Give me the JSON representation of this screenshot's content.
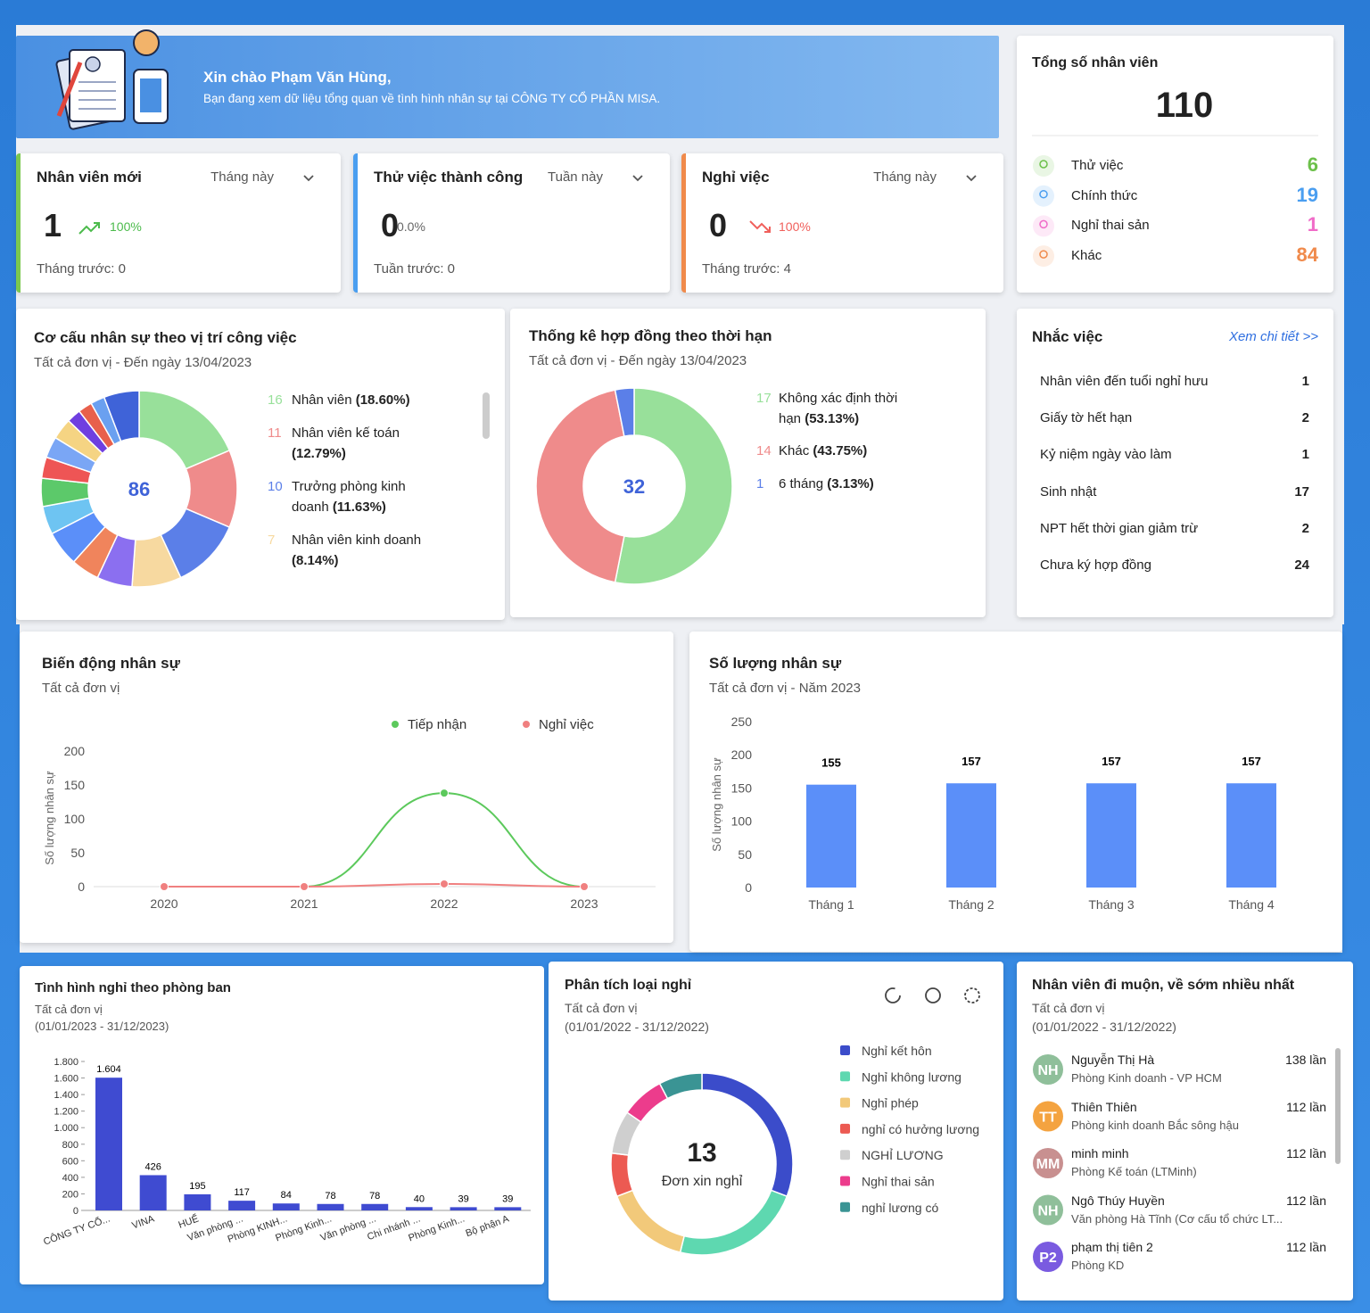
{
  "header": {
    "greeting": "Xin chào Phạm Văn Hùng,",
    "message": "Bạn đang xem dữ liệu tổng quan về tình hình nhân sự tại CÔNG TY CỔ PHẦN MISA."
  },
  "total_employees": {
    "title": "Tổng số nhân viên",
    "value": 110,
    "items": [
      {
        "label": "Thử việc",
        "value": 6,
        "color": "#6cc04a"
      },
      {
        "label": "Chính thức",
        "value": 19,
        "color": "#4a9ef0"
      },
      {
        "label": "Nghỉ thai sản",
        "value": 1,
        "color": "#f06bc8"
      },
      {
        "label": "Khác",
        "value": 84,
        "color": "#f08a4b"
      }
    ]
  },
  "kpis": [
    {
      "title": "Nhân viên mới",
      "period": "Tháng này",
      "value": 1,
      "change": "100%",
      "trend": "up",
      "previous": "Tháng trước: 0",
      "color": "#7cc84f"
    },
    {
      "title": "Thử việc thành công",
      "period": "Tuần này",
      "value": 0,
      "change": "0.0%",
      "trend": "none",
      "previous": "Tuần trước: 0",
      "color": "#4a9ef0"
    },
    {
      "title": "Nghỉ việc",
      "period": "Tháng này",
      "value": 0,
      "change": "100%",
      "trend": "down",
      "previous": "Tháng trước: 4",
      "color": "#f08a4b"
    }
  ],
  "positions": {
    "type": "donut",
    "title": "Cơ cấu nhân sự theo vị trí công việc",
    "subtitle": "Tất cả đơn vị - Đến ngày 13/04/2023",
    "total": 86,
    "slices": [
      {
        "value": 16,
        "label": "Nhân viên",
        "percent": "(18.60%)",
        "color": "#98e09a"
      },
      {
        "value": 11,
        "label": "Nhân viên kế toán",
        "percent": "(12.79%)",
        "color": "#ef8b8b"
      },
      {
        "value": 10,
        "label": "Trưởng phòng kinh doanh",
        "percent": "(11.63%)",
        "color": "#5b7fe8"
      },
      {
        "value": 7,
        "label": "Nhân viên kinh doanh",
        "percent": "(8.14%)",
        "color": "#f7d9a0"
      },
      {
        "value": 5,
        "color": "#8b6ff0"
      },
      {
        "value": 4,
        "color": "#f0845c"
      },
      {
        "value": 5,
        "color": "#5b8ff9"
      },
      {
        "value": 4,
        "color": "#6ec4f2"
      },
      {
        "value": 4,
        "color": "#5cc96a"
      },
      {
        "value": 3,
        "color": "#ee5555"
      },
      {
        "value": 3,
        "color": "#7aa6f5"
      },
      {
        "value": 3,
        "color": "#f5d483"
      },
      {
        "value": 2,
        "color": "#6f3fe0"
      },
      {
        "value": 2,
        "color": "#e8604c"
      },
      {
        "value": 2,
        "color": "#6aa0f0"
      },
      {
        "value": 5,
        "color": "#3f63d8"
      }
    ]
  },
  "contracts": {
    "type": "donut",
    "title": "Thống kê hợp đồng theo thời hạn",
    "subtitle": "Tất cả đơn vị - Đến ngày 13/04/2023",
    "total": 32,
    "slices": [
      {
        "value": 17,
        "label": "Không xác định thời hạn",
        "percent": "(53.13%)",
        "color": "#98e09a"
      },
      {
        "value": 14,
        "label": "Khác",
        "percent": "(43.75%)",
        "color": "#ef8b8b"
      },
      {
        "value": 1,
        "label": "6 tháng",
        "percent": "(3.13%)",
        "color": "#5b7fe8"
      }
    ]
  },
  "reminders": {
    "title": "Nhắc việc",
    "link": "Xem chi tiết >>",
    "rows": [
      {
        "label": "Nhân viên đến tuổi nghỉ hưu",
        "value": 1
      },
      {
        "label": "Giấy tờ hết hạn",
        "value": 2
      },
      {
        "label": "Kỷ niệm ngày vào làm",
        "value": 1
      },
      {
        "label": "Sinh nhật",
        "value": 17
      },
      {
        "label": "NPT hết thời gian giảm trừ",
        "value": 2
      },
      {
        "label": "Chưa ký hợp đồng",
        "value": 24
      }
    ]
  },
  "line_chart": {
    "type": "line",
    "title": "Biến động nhân sự",
    "subtitle": "Tất cả đơn vị",
    "y_label": "Số lượng nhân sự",
    "x": [
      2020,
      2021,
      2022,
      2023
    ],
    "series": [
      {
        "name": "Tiếp nhận",
        "color": "#5cc95c",
        "values": [
          0,
          0,
          138,
          0
        ]
      },
      {
        "name": "Nghỉ việc",
        "color": "#f08080",
        "values": [
          0,
          0,
          4,
          0
        ]
      }
    ],
    "ylim": [
      0,
      200
    ],
    "yticks": [
      0,
      50,
      100,
      150,
      200
    ],
    "grid": false,
    "legend": "top"
  },
  "bar_chart": {
    "type": "bar",
    "title": "Số lượng nhân sự",
    "subtitle": "Tất cả đơn vị - Năm 2023",
    "y_label": "Số lượng nhân sự",
    "categories": [
      "Tháng 1",
      "Tháng 2",
      "Tháng 3",
      "Tháng 4"
    ],
    "values": [
      155,
      157,
      157,
      157
    ],
    "color": "#5b8ff9",
    "ylim": [
      0,
      250
    ],
    "yticks": [
      0,
      50,
      100,
      150,
      200,
      250
    ],
    "grid": false
  },
  "dept_chart": {
    "type": "bar",
    "title": "Tình hình nghỉ theo phòng ban",
    "subtitle": "Tất cả đơn vị",
    "period": "(01/01/2023 - 31/12/2023)",
    "categories": [
      "CÔNG TY CỔ...",
      "VINA",
      "HUẾ",
      "Văn phòng ...",
      "Phòng KINH...",
      "Phòng Kinh...",
      "Văn phòng ...",
      "Chi nhánh ...",
      "Phòng Kinh...",
      "Bộ phận A"
    ],
    "values": [
      1604,
      426,
      195,
      117,
      84,
      78,
      78,
      40,
      39,
      39
    ],
    "value_labels": [
      "1.604",
      "426",
      "195",
      "117",
      "84",
      "78",
      "78",
      "40",
      "39",
      "39"
    ],
    "color": "#3f4bd1",
    "ylim": [
      0,
      1800
    ],
    "yticks": [
      0,
      200,
      400,
      600,
      800,
      {
        "value": 1000,
        "label": "1.000"
      },
      {
        "value": 1200,
        "label": "1.200"
      },
      {
        "value": 1400,
        "label": "1.400"
      },
      {
        "value": 1600,
        "label": "1.600"
      },
      {
        "value": 1800,
        "label": "1.800"
      }
    ]
  },
  "leave_types": {
    "type": "donut",
    "title": "Phân tích loại nghỉ",
    "subtitle": "Tất cả đơn vị",
    "period": "(01/01/2022 - 31/12/2022)",
    "total": 13,
    "center_label": "Đơn xin nghỉ",
    "slices": [
      {
        "label": "Nghỉ kết hôn",
        "value": 4,
        "color": "#3b4cca"
      },
      {
        "label": "Nghỉ không lương",
        "value": 3,
        "color": "#5ed8b0"
      },
      {
        "label": "Nghỉ phép",
        "value": 2,
        "color": "#f2c97a"
      },
      {
        "label": "nghỉ có hưởng lương",
        "value": 1,
        "color": "#ec5a52"
      },
      {
        "label": "NGHỈ LƯƠNG",
        "value": 1,
        "color": "#cfcfcf"
      },
      {
        "label": "Nghỉ thai sản",
        "value": 1,
        "color": "#ec3c8c"
      },
      {
        "label": "nghỉ lương có",
        "value": 1,
        "color": "#3a9494"
      }
    ]
  },
  "late_employees": {
    "title": "Nhân viên đi muộn, về sớm nhiều nhất",
    "subtitle": "Tất cả đơn vị",
    "period": "(01/01/2022 - 31/12/2022)",
    "rows": [
      {
        "initials": "NH",
        "name": "Nguyễn Thị Hà",
        "department": "Phòng Kinh doanh - VP HCM",
        "count": "138 lần",
        "color": "#8fbf9a"
      },
      {
        "initials": "TT",
        "name": "Thiên Thiên",
        "department": "Phòng kinh doanh Bắc sông hậu",
        "count": "112 lần",
        "color": "#f4a340"
      },
      {
        "initials": "MM",
        "name": "minh minh",
        "department": "Phòng Kế toán (LTMinh)",
        "count": "112 lần",
        "color": "#c89090"
      },
      {
        "initials": "NH",
        "name": "Ngô Thúy Huyền",
        "department": "Văn phòng Hà Tĩnh (Cơ cấu tổ chức LT...",
        "count": "112 lần",
        "color": "#8fbf9a"
      },
      {
        "initials": "P2",
        "name": "phạm thị tiên 2",
        "department": "Phòng KD",
        "count": "112 lần",
        "color": "#7a5be0"
      }
    ]
  }
}
